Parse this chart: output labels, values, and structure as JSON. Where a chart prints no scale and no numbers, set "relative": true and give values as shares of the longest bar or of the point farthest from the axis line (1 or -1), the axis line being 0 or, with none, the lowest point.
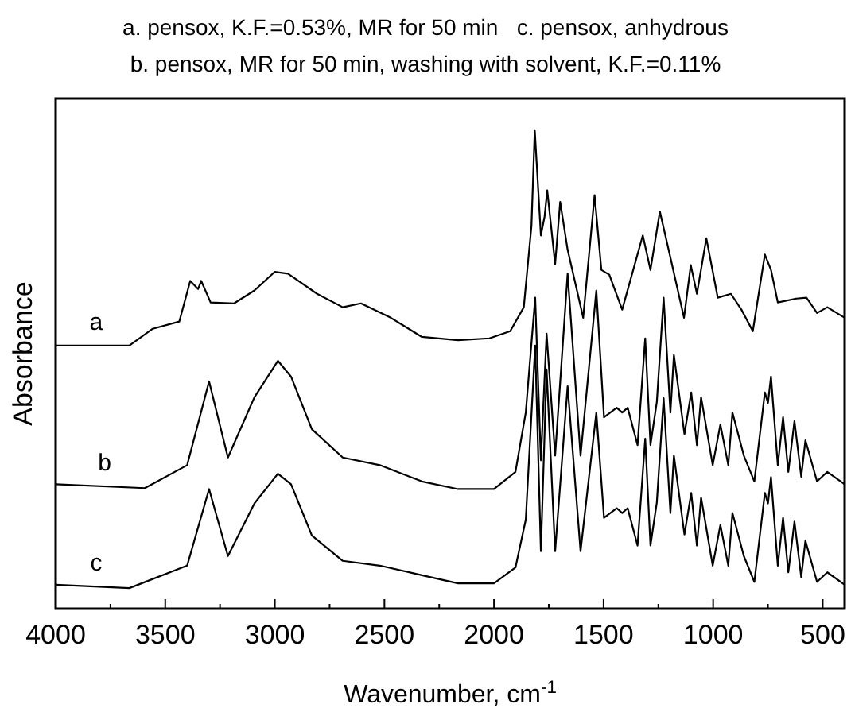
{
  "chart_data": {
    "type": "line",
    "title": "a. pensox, K.F.=0.53%, MR for 50 min   c. pensox, anhydrous",
    "subtitle": "b. pensox, MR for 50 min, washing with solvent, K.F.=0.11%",
    "xlabel": "Wavenumber, cm$^{-1}$",
    "ylabel": "Absorbance",
    "relative": true,
    "xlim": [
      4000,
      400
    ],
    "xticks": [
      4000,
      {
        "value": 3750,
        "label": null
      },
      3500,
      {
        "value": 3250,
        "label": null
      },
      3000,
      {
        "value": 2750,
        "label": null
      },
      2500,
      {
        "value": 2250,
        "label": null
      },
      2000,
      {
        "value": 1750,
        "label": null
      },
      1500,
      {
        "value": 1250,
        "label": null
      },
      1000,
      {
        "value": 750,
        "label": null
      },
      500
    ],
    "grid": false,
    "marker": "none",
    "line_style": "solid",
    "series": [
      {
        "name": "a",
        "color": "#000000",
        "x": [
          4000,
          3664,
          3557,
          3436,
          3386,
          3350,
          3336,
          3293,
          3186,
          3093,
          3000,
          2940,
          2807,
          2690,
          2607,
          2471,
          2329,
          2164,
          2021,
          1926,
          1864,
          1829,
          1814,
          1786,
          1769,
          1757,
          1721,
          1698,
          1664,
          1593,
          1541,
          1510,
          1474,
          1415,
          1321,
          1286,
          1243,
          1193,
          1133,
          1102,
          1074,
          1031,
          979,
          919,
          871,
          819,
          764,
          736,
          705,
          621,
          574,
          526,
          479,
          400
        ],
        "values": [
          0.55,
          0.55,
          0.585,
          0.6,
          0.685,
          0.668,
          0.685,
          0.64,
          0.638,
          0.665,
          0.704,
          0.7,
          0.658,
          0.63,
          0.638,
          0.608,
          0.568,
          0.561,
          0.565,
          0.58,
          0.63,
          0.8,
          1.0,
          0.78,
          0.82,
          0.874,
          0.72,
          0.85,
          0.75,
          0.608,
          0.864,
          0.708,
          0.698,
          0.625,
          0.78,
          0.708,
          0.83,
          0.73,
          0.608,
          0.718,
          0.658,
          0.774,
          0.65,
          0.658,
          0.625,
          0.58,
          0.74,
          0.708,
          0.64,
          0.648,
          0.65,
          0.618,
          0.63,
          0.608
        ]
      },
      {
        "name": "b",
        "color": "#000000",
        "x": [
          4000,
          3593,
          3400,
          3300,
          3214,
          3093,
          2986,
          2926,
          2831,
          2690,
          2521,
          2329,
          2164,
          2000,
          1902,
          1855,
          1812,
          1786,
          1760,
          1721,
          1664,
          1605,
          1533,
          1498,
          1440,
          1415,
          1390,
          1345,
          1310,
          1286,
          1257,
          1226,
          1195,
          1179,
          1131,
          1100,
          1074,
          1055,
          1002,
          967,
          931,
          912,
          860,
          812,
          764,
          750,
          736,
          705,
          681,
          657,
          629,
          598,
          579,
          526,
          479,
          400
        ],
        "values": [
          0.26,
          0.252,
          0.3,
          0.475,
          0.316,
          0.442,
          0.518,
          0.485,
          0.375,
          0.316,
          0.3,
          0.266,
          0.25,
          0.25,
          0.286,
          0.41,
          0.65,
          0.31,
          0.575,
          0.32,
          0.7,
          0.32,
          0.665,
          0.4,
          0.42,
          0.41,
          0.42,
          0.342,
          0.565,
          0.342,
          0.432,
          0.65,
          0.41,
          0.53,
          0.365,
          0.452,
          0.342,
          0.442,
          0.3,
          0.385,
          0.3,
          0.41,
          0.32,
          0.266,
          0.452,
          0.43,
          0.485,
          0.3,
          0.4,
          0.286,
          0.392,
          0.276,
          0.352,
          0.266,
          0.286,
          0.26
        ]
      },
      {
        "name": "c",
        "color": "#000000",
        "x": [
          4000,
          3664,
          3400,
          3300,
          3214,
          3093,
          2986,
          2926,
          2831,
          2690,
          2521,
          2329,
          2164,
          2000,
          1902,
          1855,
          1812,
          1786,
          1760,
          1721,
          1664,
          1605,
          1533,
          1498,
          1440,
          1415,
          1390,
          1345,
          1310,
          1286,
          1257,
          1226,
          1195,
          1179,
          1131,
          1100,
          1074,
          1055,
          1002,
          967,
          931,
          912,
          860,
          812,
          764,
          750,
          736,
          705,
          681,
          657,
          629,
          598,
          579,
          526,
          479,
          400
        ],
        "values": [
          0.05,
          0.043,
          0.09,
          0.25,
          0.11,
          0.22,
          0.282,
          0.26,
          0.153,
          0.1,
          0.09,
          0.07,
          0.053,
          0.053,
          0.086,
          0.186,
          0.55,
          0.12,
          0.5,
          0.12,
          0.465,
          0.12,
          0.41,
          0.19,
          0.21,
          0.2,
          0.21,
          0.132,
          0.355,
          0.132,
          0.222,
          0.44,
          0.2,
          0.32,
          0.155,
          0.242,
          0.132,
          0.232,
          0.09,
          0.175,
          0.09,
          0.2,
          0.11,
          0.056,
          0.242,
          0.22,
          0.275,
          0.09,
          0.19,
          0.076,
          0.182,
          0.066,
          0.142,
          0.056,
          0.076,
          0.05
        ]
      }
    ]
  }
}
